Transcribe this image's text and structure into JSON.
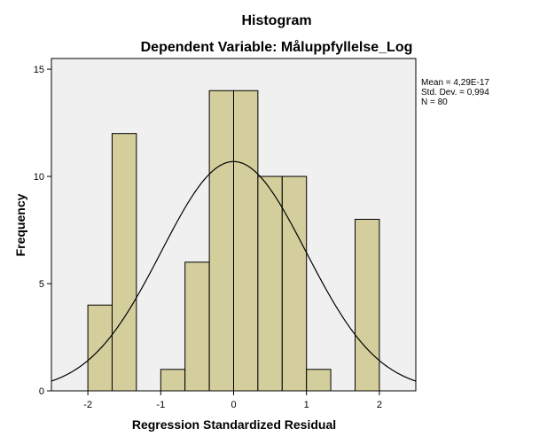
{
  "chart_data": {
    "type": "bar",
    "title": "Histogram",
    "subtitle": "Dependent Variable: Måluppfyllelse_Log",
    "xlabel": "Regression Standardized Residual",
    "ylabel": "Frequency",
    "xlim": [
      -2.5,
      2.5
    ],
    "ylim": [
      0,
      15.5
    ],
    "x_ticks": [
      -2,
      -1,
      0,
      1,
      2
    ],
    "x_tick_labels": [
      "-2",
      "-1",
      "0",
      "1",
      "2"
    ],
    "y_ticks": [
      0,
      5,
      10,
      15
    ],
    "y_tick_labels": [
      "0",
      "5",
      "10",
      "15"
    ],
    "bin_width": 0.333,
    "bins": [
      {
        "start": -2.0,
        "count": 4
      },
      {
        "start": -1.667,
        "count": 12
      },
      {
        "start": -1.0,
        "count": 1
      },
      {
        "start": -0.667,
        "count": 6
      },
      {
        "start": -0.333,
        "count": 14
      },
      {
        "start": 0.0,
        "count": 14
      },
      {
        "start": 0.333,
        "count": 10
      },
      {
        "start": 0.667,
        "count": 10
      },
      {
        "start": 1.0,
        "count": 1
      },
      {
        "start": 1.667,
        "count": 8
      }
    ],
    "bar_color": "#d3ce9c",
    "plot_background": "#f0f0f0",
    "normal_curve": {
      "mean": 0,
      "sd": 0.994,
      "n": 80
    },
    "stats": {
      "mean": "Mean = 4,29E-17",
      "sd": "Std. Dev. = 0,994",
      "n": "N = 80"
    },
    "grid": false,
    "legend": "right"
  }
}
